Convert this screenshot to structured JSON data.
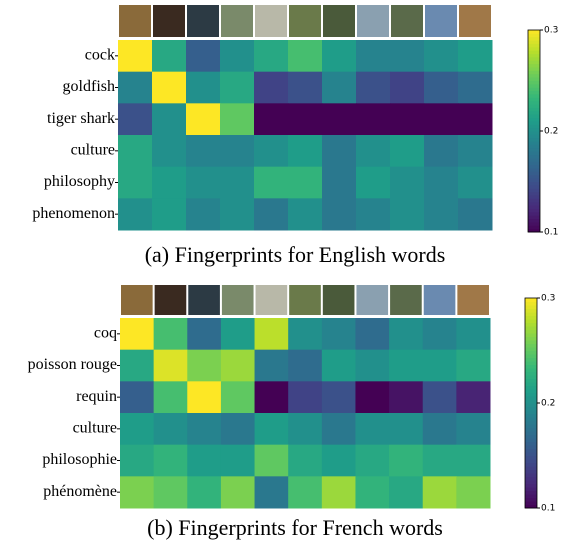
{
  "chart_data": [
    {
      "type": "heatmap",
      "caption": "(a) Fingerprints for English words",
      "colormap": "viridis",
      "rows": [
        "cock",
        "goldfish",
        "tiger shark",
        "culture",
        "philosophy",
        "phenomenon"
      ],
      "values": [
        [
          0.3,
          0.22,
          0.16,
          0.2,
          0.22,
          0.24,
          0.21,
          0.19,
          0.19,
          0.2,
          0.21
        ],
        [
          0.19,
          0.3,
          0.2,
          0.22,
          0.14,
          0.15,
          0.19,
          0.15,
          0.14,
          0.16,
          0.17
        ],
        [
          0.15,
          0.2,
          0.3,
          0.25,
          0.1,
          0.1,
          0.1,
          0.1,
          0.1,
          0.1,
          0.1
        ],
        [
          0.22,
          0.2,
          0.19,
          0.19,
          0.2,
          0.21,
          0.18,
          0.2,
          0.21,
          0.18,
          0.19
        ],
        [
          0.22,
          0.21,
          0.2,
          0.2,
          0.23,
          0.23,
          0.18,
          0.21,
          0.2,
          0.19,
          0.2
        ],
        [
          0.2,
          0.21,
          0.19,
          0.2,
          0.18,
          0.2,
          0.18,
          0.19,
          0.2,
          0.19,
          0.18
        ]
      ],
      "clim": [
        0.1,
        0.3
      ],
      "cticks": [
        0.1,
        0.2,
        0.3
      ]
    },
    {
      "type": "heatmap",
      "caption": "(b) Fingerprints for French words",
      "colormap": "viridis",
      "rows": [
        "coq",
        "poisson rouge",
        "requin",
        "culture",
        "philosophie",
        "phénomène"
      ],
      "values": [
        [
          0.3,
          0.24,
          0.17,
          0.21,
          0.28,
          0.2,
          0.19,
          0.17,
          0.2,
          0.19,
          0.2
        ],
        [
          0.22,
          0.29,
          0.26,
          0.27,
          0.18,
          0.17,
          0.21,
          0.2,
          0.21,
          0.21,
          0.22
        ],
        [
          0.16,
          0.24,
          0.3,
          0.25,
          0.1,
          0.14,
          0.15,
          0.1,
          0.11,
          0.15,
          0.12
        ],
        [
          0.21,
          0.2,
          0.19,
          0.18,
          0.21,
          0.2,
          0.18,
          0.2,
          0.2,
          0.18,
          0.19
        ],
        [
          0.22,
          0.23,
          0.21,
          0.21,
          0.25,
          0.22,
          0.21,
          0.22,
          0.23,
          0.22,
          0.22
        ],
        [
          0.26,
          0.25,
          0.23,
          0.26,
          0.18,
          0.24,
          0.27,
          0.23,
          0.22,
          0.27,
          0.26
        ]
      ],
      "clim": [
        0.1,
        0.3
      ],
      "cticks": [
        0.1,
        0.2,
        0.3
      ]
    }
  ]
}
